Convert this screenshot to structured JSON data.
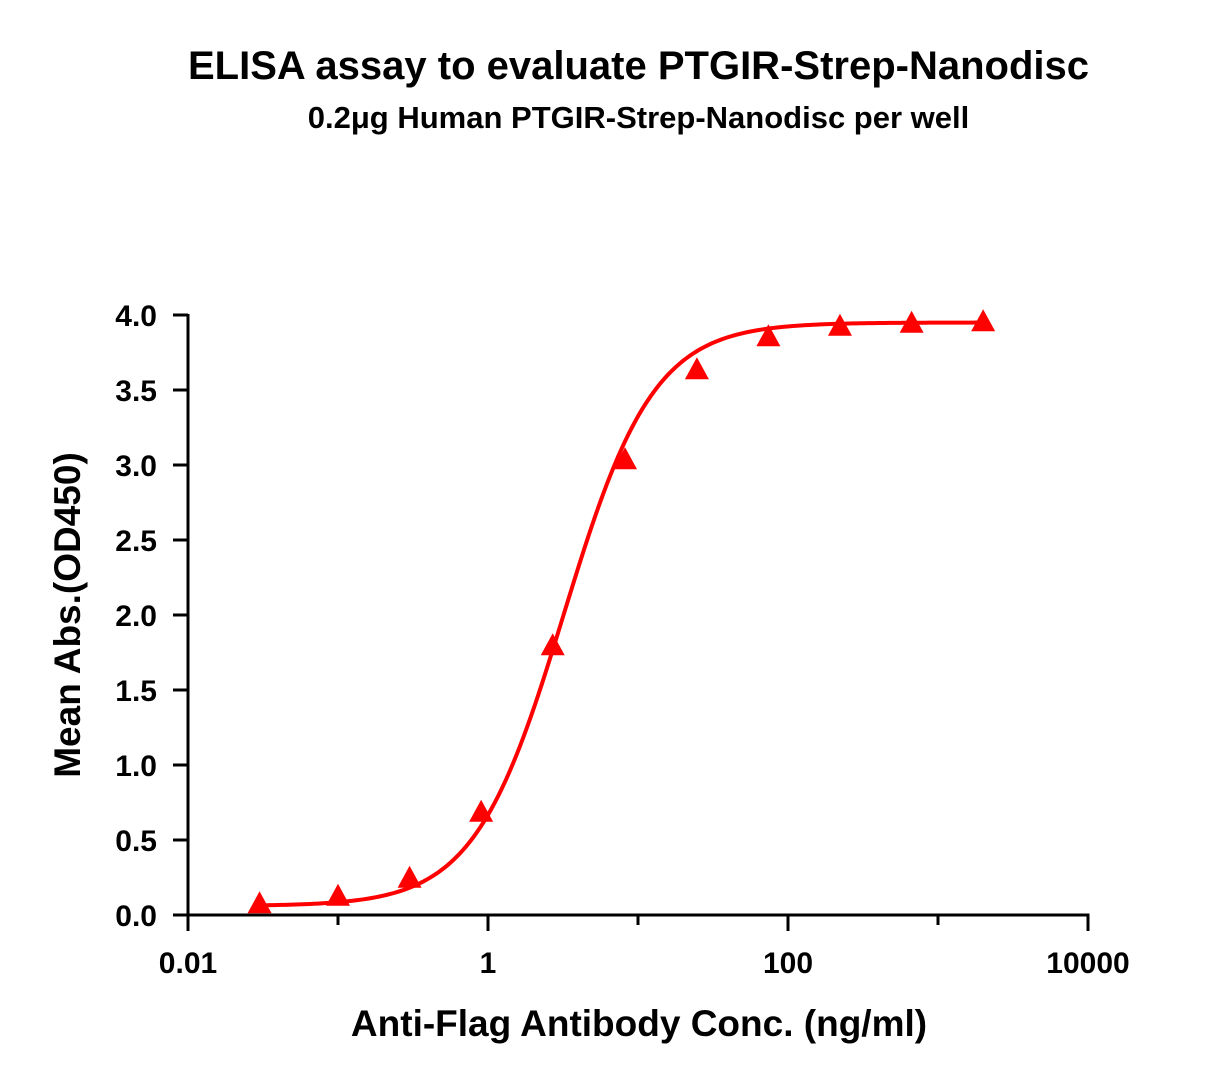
{
  "chart_data": {
    "type": "scatter",
    "title": "ELISA assay to evaluate PTGIR-Strep-Nanodisc",
    "subtitle": "0.2μg Human PTGIR-Strep-Nanodisc per well",
    "xlabel": "Anti-Flag Antibody Conc. (ng/ml)",
    "ylabel": "Mean Abs.(OD450)",
    "x_scale": "log",
    "xlim": [
      0.01,
      10000
    ],
    "ylim": [
      0,
      4
    ],
    "x_ticks": [
      0.01,
      1,
      100,
      10000
    ],
    "x_tick_labels": [
      "0.01",
      "1",
      "100",
      "10000"
    ],
    "y_ticks": [
      0.0,
      0.5,
      1.0,
      1.5,
      2.0,
      2.5,
      3.0,
      3.5,
      4.0
    ],
    "y_tick_labels": [
      "0.0",
      "0.5",
      "1.0",
      "1.5",
      "2.0",
      "2.5",
      "3.0",
      "3.5",
      "4.0"
    ],
    "grid": false,
    "series": [
      {
        "marker": "triangle",
        "color": "#ff0000",
        "fit": "sigmoidal (4PL)",
        "x": [
          0.03,
          0.1,
          0.3,
          0.9,
          2.7,
          8.2,
          24.7,
          74,
          222,
          667,
          2000
        ],
        "y": [
          0.07,
          0.12,
          0.24,
          0.68,
          1.79,
          3.03,
          3.63,
          3.85,
          3.92,
          3.94,
          3.95
        ]
      }
    ]
  }
}
